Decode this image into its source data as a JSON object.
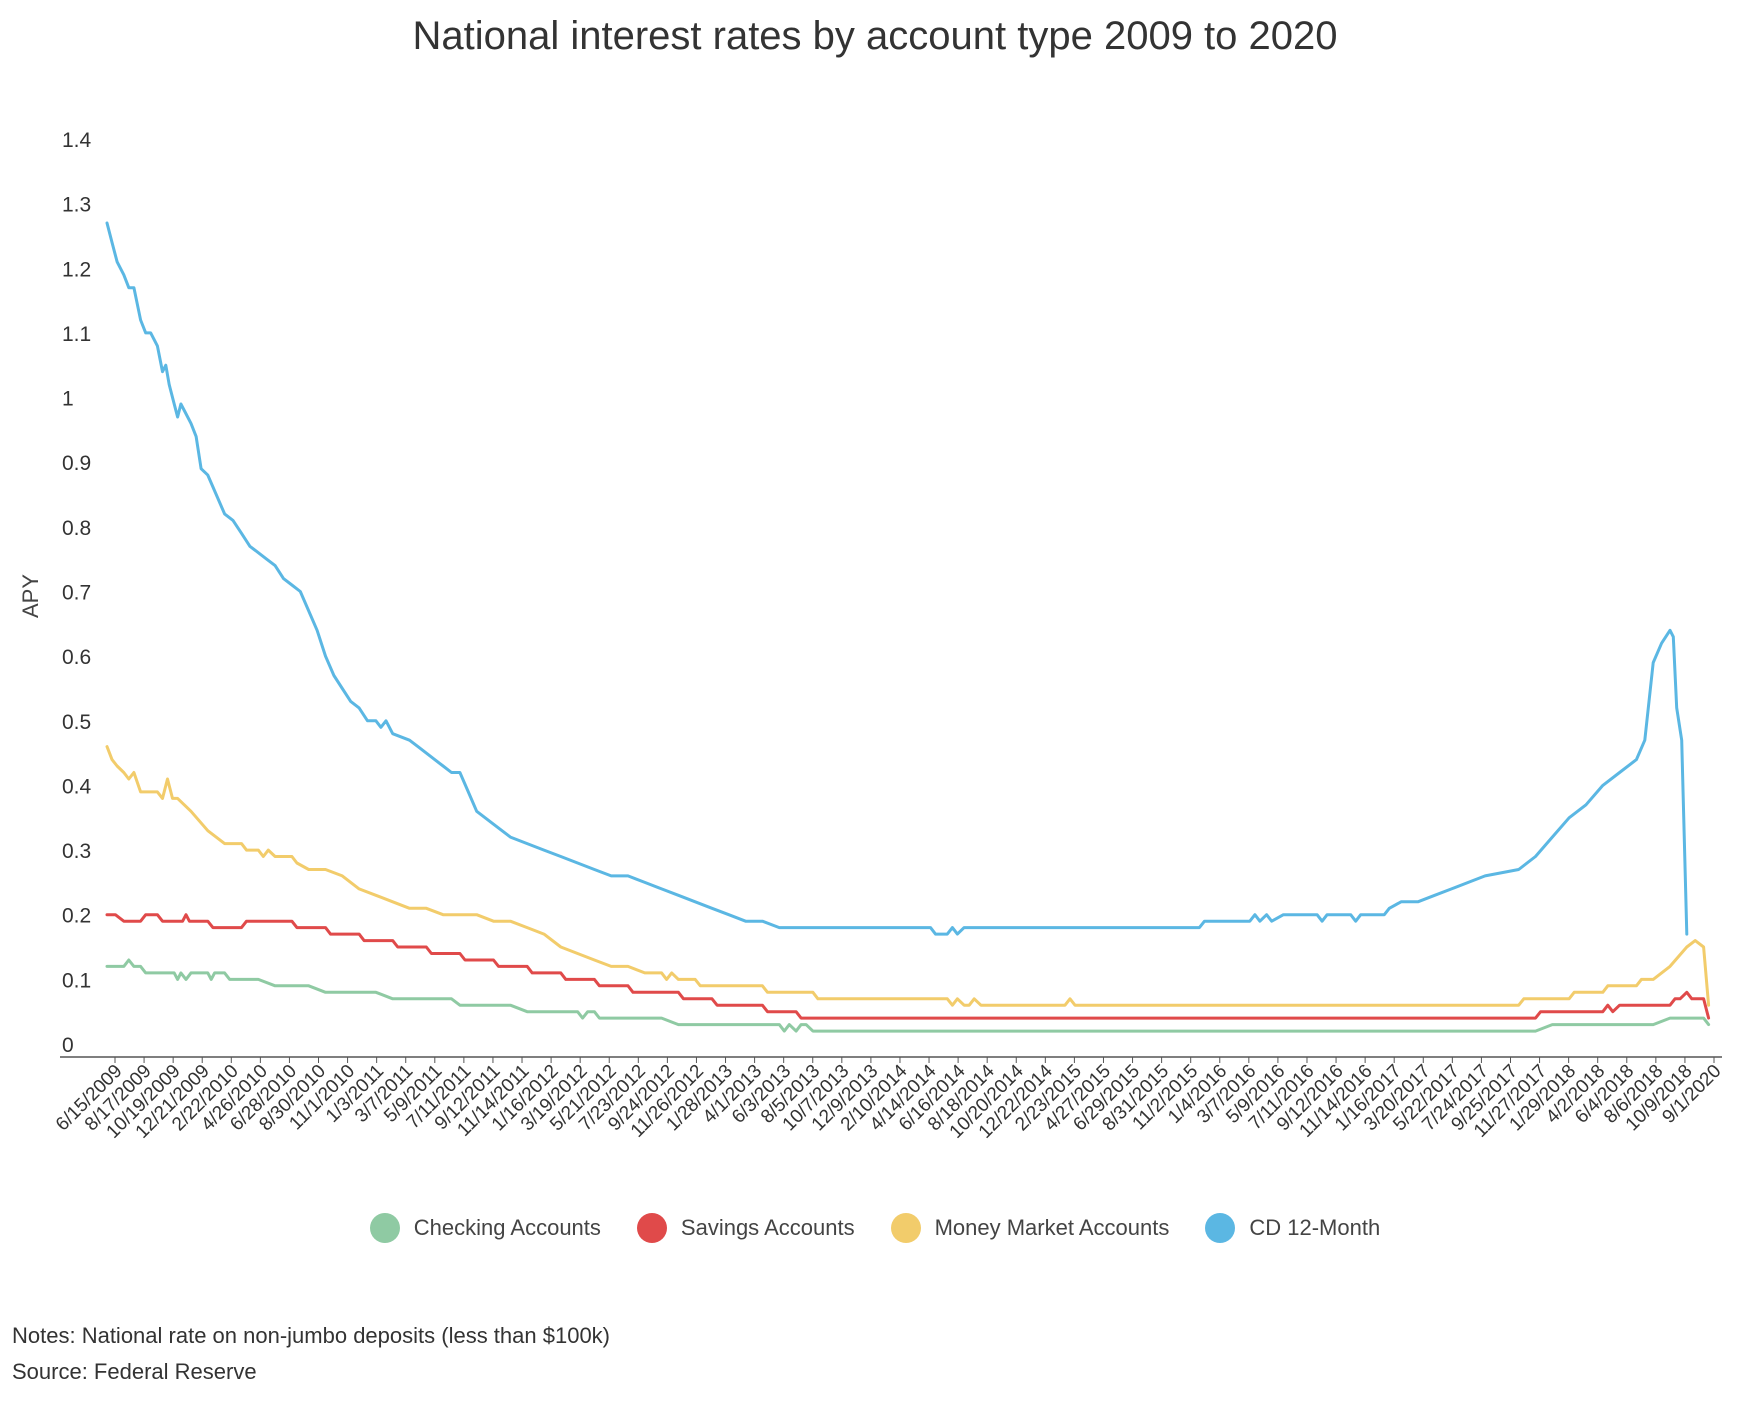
{
  "chart_data": {
    "type": "line",
    "title": "National interest rates by account type 2009 to 2020",
    "xlabel": "",
    "ylabel": "APY",
    "ylim": [
      0,
      1.4
    ],
    "yticks": [
      "0",
      "0.1",
      "0.2",
      "0.3",
      "0.4",
      "0.5",
      "0.6",
      "0.7",
      "0.8",
      "0.9",
      "1",
      "1.1",
      "1.2",
      "1.3",
      "1.4"
    ],
    "xticks": [
      "6/15/2009",
      "8/17/2009",
      "10/19/2009",
      "12/21/2009",
      "2/22/2010",
      "4/26/2010",
      "6/28/2010",
      "8/30/2010",
      "11/1/2010",
      "1/3/2011",
      "3/7/2011",
      "5/9/2011",
      "7/11/2011",
      "9/12/2011",
      "11/14/2011",
      "1/16/2012",
      "3/19/2012",
      "5/21/2012",
      "7/23/2012",
      "9/24/2012",
      "11/26/2012",
      "1/28/2013",
      "4/1/2013",
      "6/3/2013",
      "8/5/2013",
      "10/7/2013",
      "12/9/2013",
      "2/10/2014",
      "4/14/2014",
      "6/16/2014",
      "8/18/2014",
      "10/20/2014",
      "12/22/2014",
      "2/23/2015",
      "4/27/2015",
      "6/29/2015",
      "8/31/2015",
      "11/2/2015",
      "1/4/2016",
      "3/7/2016",
      "5/9/2016",
      "7/11/2016",
      "9/12/2016",
      "11/14/2016",
      "1/16/2017",
      "3/20/2017",
      "5/22/2017",
      "7/24/2017",
      "9/25/2017",
      "11/27/2017",
      "1/29/2018",
      "4/2/2018",
      "6/4/2018",
      "8/6/2018",
      "10/9/2018",
      "9/1/2020"
    ],
    "legend_position": "bottom",
    "grid": false,
    "series": [
      {
        "name": "Checking Accounts",
        "color": "#8fcaa3",
        "points": [
          [
            0,
            0.12
          ],
          [
            1,
            0.12
          ],
          [
            1.3,
            0.13
          ],
          [
            1.6,
            0.12
          ],
          [
            2,
            0.12
          ],
          [
            2.3,
            0.11
          ],
          [
            4,
            0.11
          ],
          [
            4.2,
            0.1
          ],
          [
            4.4,
            0.11
          ],
          [
            4.7,
            0.1
          ],
          [
            5,
            0.11
          ],
          [
            6,
            0.11
          ],
          [
            6.2,
            0.1
          ],
          [
            6.4,
            0.11
          ],
          [
            7,
            0.11
          ],
          [
            7.3,
            0.1
          ],
          [
            9,
            0.1
          ],
          [
            10,
            0.09
          ],
          [
            12,
            0.09
          ],
          [
            13,
            0.08
          ],
          [
            16,
            0.08
          ],
          [
            17,
            0.07
          ],
          [
            20.5,
            0.07
          ],
          [
            21,
            0.06
          ],
          [
            24,
            0.06
          ],
          [
            25,
            0.05
          ],
          [
            28,
            0.05
          ],
          [
            28.3,
            0.04
          ],
          [
            28.6,
            0.05
          ],
          [
            29,
            0.05
          ],
          [
            29.3,
            0.04
          ],
          [
            33,
            0.04
          ],
          [
            34,
            0.03
          ],
          [
            40,
            0.03
          ],
          [
            40.3,
            0.02
          ],
          [
            40.6,
            0.03
          ],
          [
            41,
            0.02
          ],
          [
            41.3,
            0.03
          ],
          [
            41.6,
            0.03
          ],
          [
            42,
            0.02
          ],
          [
            85,
            0.02
          ],
          [
            86,
            0.03
          ],
          [
            92,
            0.03
          ],
          [
            93,
            0.04
          ],
          [
            95,
            0.04
          ],
          [
            95.3,
            0.03
          ]
        ]
      },
      {
        "name": "Savings Accounts",
        "color": "#e04a4a",
        "points": [
          [
            0,
            0.2
          ],
          [
            0.5,
            0.2
          ],
          [
            1,
            0.19
          ],
          [
            2,
            0.19
          ],
          [
            2.3,
            0.2
          ],
          [
            3,
            0.2
          ],
          [
            3.3,
            0.19
          ],
          [
            4.5,
            0.19
          ],
          [
            4.7,
            0.2
          ],
          [
            4.9,
            0.19
          ],
          [
            6,
            0.19
          ],
          [
            6.3,
            0.18
          ],
          [
            8,
            0.18
          ],
          [
            8.3,
            0.19
          ],
          [
            11,
            0.19
          ],
          [
            11.3,
            0.18
          ],
          [
            13,
            0.18
          ],
          [
            13.3,
            0.17
          ],
          [
            15,
            0.17
          ],
          [
            15.3,
            0.16
          ],
          [
            17,
            0.16
          ],
          [
            17.3,
            0.15
          ],
          [
            19,
            0.15
          ],
          [
            19.3,
            0.14
          ],
          [
            21,
            0.14
          ],
          [
            21.3,
            0.13
          ],
          [
            23,
            0.13
          ],
          [
            23.3,
            0.12
          ],
          [
            25,
            0.12
          ],
          [
            25.3,
            0.11
          ],
          [
            27,
            0.11
          ],
          [
            27.3,
            0.1
          ],
          [
            29,
            0.1
          ],
          [
            29.3,
            0.09
          ],
          [
            31,
            0.09
          ],
          [
            31.3,
            0.08
          ],
          [
            34,
            0.08
          ],
          [
            34.3,
            0.07
          ],
          [
            36,
            0.07
          ],
          [
            36.3,
            0.06
          ],
          [
            39,
            0.06
          ],
          [
            39.3,
            0.05
          ],
          [
            41,
            0.05
          ],
          [
            41.3,
            0.04
          ],
          [
            85,
            0.04
          ],
          [
            85.3,
            0.05
          ],
          [
            89,
            0.05
          ],
          [
            89.3,
            0.06
          ],
          [
            89.6,
            0.05
          ],
          [
            90,
            0.06
          ],
          [
            93,
            0.06
          ],
          [
            93.3,
            0.07
          ],
          [
            93.6,
            0.07
          ],
          [
            94,
            0.08
          ],
          [
            94.3,
            0.07
          ],
          [
            95,
            0.07
          ],
          [
            95.3,
            0.04
          ]
        ]
      },
      {
        "name": "Money Market Accounts",
        "color": "#f2cc6b",
        "points": [
          [
            0,
            0.46
          ],
          [
            0.3,
            0.44
          ],
          [
            0.6,
            0.43
          ],
          [
            1,
            0.42
          ],
          [
            1.3,
            0.41
          ],
          [
            1.6,
            0.42
          ],
          [
            2,
            0.39
          ],
          [
            3,
            0.39
          ],
          [
            3.3,
            0.38
          ],
          [
            3.6,
            0.41
          ],
          [
            3.9,
            0.38
          ],
          [
            4.2,
            0.38
          ],
          [
            5,
            0.36
          ],
          [
            6,
            0.33
          ],
          [
            7,
            0.31
          ],
          [
            8,
            0.31
          ],
          [
            8.3,
            0.3
          ],
          [
            9,
            0.3
          ],
          [
            9.3,
            0.29
          ],
          [
            9.6,
            0.3
          ],
          [
            10,
            0.29
          ],
          [
            11,
            0.29
          ],
          [
            11.3,
            0.28
          ],
          [
            12,
            0.27
          ],
          [
            13,
            0.27
          ],
          [
            14,
            0.26
          ],
          [
            15,
            0.24
          ],
          [
            16,
            0.23
          ],
          [
            17,
            0.22
          ],
          [
            18,
            0.21
          ],
          [
            19,
            0.21
          ],
          [
            20,
            0.2
          ],
          [
            22,
            0.2
          ],
          [
            23,
            0.19
          ],
          [
            24,
            0.19
          ],
          [
            25,
            0.18
          ],
          [
            26,
            0.17
          ],
          [
            27,
            0.15
          ],
          [
            28,
            0.14
          ],
          [
            29,
            0.13
          ],
          [
            30,
            0.12
          ],
          [
            31,
            0.12
          ],
          [
            32,
            0.11
          ],
          [
            33,
            0.11
          ],
          [
            33.3,
            0.1
          ],
          [
            33.6,
            0.11
          ],
          [
            34,
            0.1
          ],
          [
            35,
            0.1
          ],
          [
            35.3,
            0.09
          ],
          [
            39,
            0.09
          ],
          [
            39.3,
            0.08
          ],
          [
            42,
            0.08
          ],
          [
            42.3,
            0.07
          ],
          [
            50,
            0.07
          ],
          [
            50.3,
            0.06
          ],
          [
            50.6,
            0.07
          ],
          [
            51,
            0.06
          ],
          [
            51.3,
            0.06
          ],
          [
            51.6,
            0.07
          ],
          [
            52,
            0.06
          ],
          [
            57,
            0.06
          ],
          [
            57.3,
            0.07
          ],
          [
            57.6,
            0.06
          ],
          [
            84,
            0.06
          ],
          [
            84.3,
            0.07
          ],
          [
            86,
            0.07
          ],
          [
            87,
            0.07
          ],
          [
            87.3,
            0.08
          ],
          [
            89,
            0.08
          ],
          [
            89.3,
            0.09
          ],
          [
            91,
            0.09
          ],
          [
            91.3,
            0.1
          ],
          [
            92,
            0.1
          ],
          [
            93,
            0.12
          ],
          [
            94,
            0.15
          ],
          [
            94.5,
            0.16
          ],
          [
            95,
            0.15
          ],
          [
            95.3,
            0.06
          ]
        ]
      },
      {
        "name": "CD 12-Month",
        "color": "#5bb7e3",
        "points": [
          [
            0,
            1.27
          ],
          [
            0.3,
            1.24
          ],
          [
            0.6,
            1.21
          ],
          [
            1,
            1.19
          ],
          [
            1.3,
            1.17
          ],
          [
            1.6,
            1.17
          ],
          [
            2,
            1.12
          ],
          [
            2.3,
            1.1
          ],
          [
            2.6,
            1.1
          ],
          [
            3,
            1.08
          ],
          [
            3.3,
            1.04
          ],
          [
            3.5,
            1.05
          ],
          [
            3.7,
            1.02
          ],
          [
            4,
            0.99
          ],
          [
            4.2,
            0.97
          ],
          [
            4.4,
            0.99
          ],
          [
            4.6,
            0.98
          ],
          [
            5,
            0.96
          ],
          [
            5.3,
            0.94
          ],
          [
            5.6,
            0.89
          ],
          [
            6,
            0.88
          ],
          [
            6.5,
            0.85
          ],
          [
            7,
            0.82
          ],
          [
            7.5,
            0.81
          ],
          [
            8,
            0.79
          ],
          [
            8.5,
            0.77
          ],
          [
            9,
            0.76
          ],
          [
            9.5,
            0.75
          ],
          [
            10,
            0.74
          ],
          [
            10.5,
            0.72
          ],
          [
            11,
            0.71
          ],
          [
            11.5,
            0.7
          ],
          [
            12,
            0.67
          ],
          [
            12.5,
            0.64
          ],
          [
            13,
            0.6
          ],
          [
            13.5,
            0.57
          ],
          [
            14,
            0.55
          ],
          [
            14.5,
            0.53
          ],
          [
            15,
            0.52
          ],
          [
            15.5,
            0.5
          ],
          [
            16,
            0.5
          ],
          [
            16.3,
            0.49
          ],
          [
            16.6,
            0.5
          ],
          [
            17,
            0.48
          ],
          [
            18,
            0.47
          ],
          [
            18.5,
            0.46
          ],
          [
            19,
            0.45
          ],
          [
            19.5,
            0.44
          ],
          [
            20,
            0.43
          ],
          [
            20.5,
            0.42
          ],
          [
            21,
            0.42
          ],
          [
            21.5,
            0.39
          ],
          [
            22,
            0.36
          ],
          [
            23,
            0.34
          ],
          [
            24,
            0.32
          ],
          [
            25,
            0.31
          ],
          [
            26,
            0.3
          ],
          [
            27,
            0.29
          ],
          [
            28,
            0.28
          ],
          [
            29,
            0.27
          ],
          [
            30,
            0.26
          ],
          [
            31,
            0.26
          ],
          [
            32,
            0.25
          ],
          [
            33,
            0.24
          ],
          [
            34,
            0.23
          ],
          [
            35,
            0.22
          ],
          [
            36,
            0.21
          ],
          [
            37,
            0.2
          ],
          [
            38,
            0.19
          ],
          [
            39,
            0.19
          ],
          [
            40,
            0.18
          ],
          [
            49,
            0.18
          ],
          [
            49.3,
            0.17
          ],
          [
            50,
            0.17
          ],
          [
            50.3,
            0.18
          ],
          [
            50.6,
            0.17
          ],
          [
            51,
            0.18
          ],
          [
            65,
            0.18
          ],
          [
            65.3,
            0.19
          ],
          [
            68,
            0.19
          ],
          [
            68.3,
            0.2
          ],
          [
            68.6,
            0.19
          ],
          [
            69,
            0.2
          ],
          [
            69.3,
            0.19
          ],
          [
            70,
            0.2
          ],
          [
            72,
            0.2
          ],
          [
            72.3,
            0.19
          ],
          [
            72.6,
            0.2
          ],
          [
            74,
            0.2
          ],
          [
            74.3,
            0.19
          ],
          [
            74.6,
            0.2
          ],
          [
            76,
            0.2
          ],
          [
            76.3,
            0.21
          ],
          [
            77,
            0.22
          ],
          [
            78,
            0.22
          ],
          [
            79,
            0.23
          ],
          [
            80,
            0.24
          ],
          [
            81,
            0.25
          ],
          [
            82,
            0.26
          ],
          [
            84,
            0.27
          ],
          [
            85,
            0.29
          ],
          [
            86,
            0.32
          ],
          [
            87,
            0.35
          ],
          [
            88,
            0.37
          ],
          [
            89,
            0.4
          ],
          [
            90,
            0.42
          ],
          [
            91,
            0.44
          ],
          [
            91.5,
            0.47
          ],
          [
            92,
            0.59
          ],
          [
            92.5,
            0.62
          ],
          [
            93,
            0.64
          ],
          [
            93.2,
            0.63
          ],
          [
            93.4,
            0.52
          ],
          [
            93.7,
            0.47
          ],
          [
            94,
            0.17
          ]
        ]
      }
    ]
  },
  "legend": {
    "items": [
      {
        "label": "Checking Accounts",
        "color": "#8fcaa3"
      },
      {
        "label": "Savings Accounts",
        "color": "#e04a4a"
      },
      {
        "label": "Money Market Accounts",
        "color": "#f2cc6b"
      },
      {
        "label": "CD 12-Month",
        "color": "#5bb7e3"
      }
    ]
  },
  "footer": {
    "notes": "Notes: National rate on non-jumbo deposits (less than $100k)",
    "source": "Source: Federal Reserve"
  }
}
